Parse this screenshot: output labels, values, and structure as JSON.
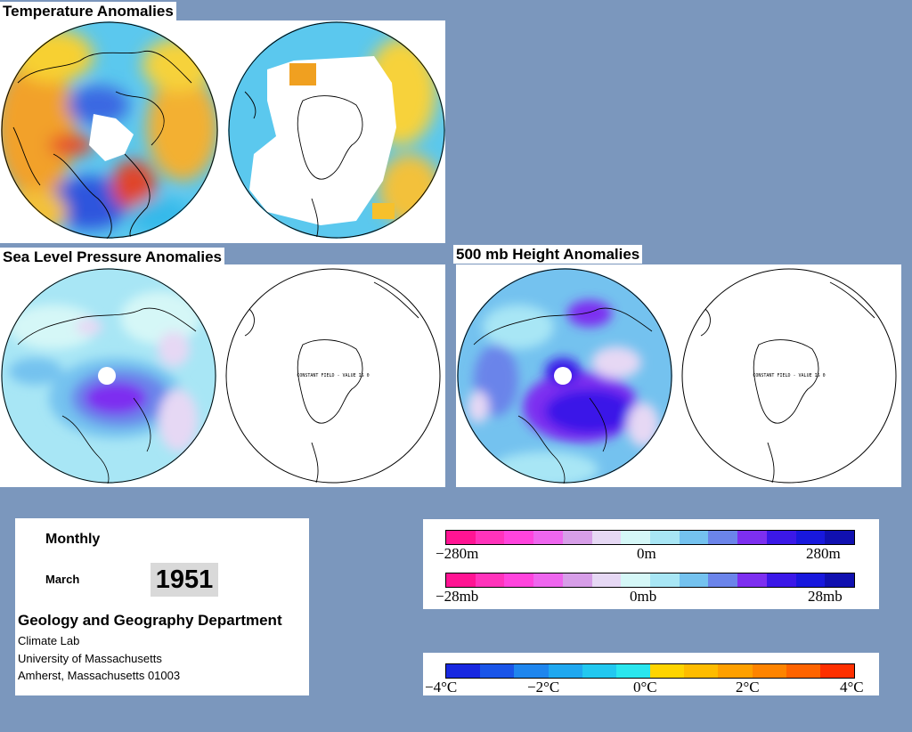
{
  "titles": {
    "temperature": "Temperature Anomalies",
    "slp": "Sea Level Pressure Anomalies",
    "height500": "500 mb Height Anomalies"
  },
  "map_text": {
    "constant_field": "CONSTANT FIELD - VALUE IS 0"
  },
  "info": {
    "period": "Monthly",
    "month": "March",
    "year": "1951",
    "department": "Geology and Geography Department",
    "lab": "Climate Lab",
    "university": "University of Massachusetts",
    "address": "Amherst, Massachusetts 01003"
  },
  "legend_height": {
    "left": "−280m",
    "mid": "0m",
    "right": "280m",
    "colors": [
      "#ff1493",
      "#ff33bb",
      "#ff44dd",
      "#ee66ee",
      "#d79ee8",
      "#e6d8f4",
      "#d5f7f7",
      "#a8e6f5",
      "#74c2ef",
      "#6b84ea",
      "#7d2ff0",
      "#3b18e8",
      "#1818dd",
      "#1010b0"
    ]
  },
  "legend_pressure": {
    "left": "−28mb",
    "mid": "0mb",
    "right": "28mb",
    "colors": [
      "#ff1493",
      "#ff33bb",
      "#ff44dd",
      "#ee66ee",
      "#d79ee8",
      "#e6d8f4",
      "#d5f7f7",
      "#a8e6f5",
      "#74c2ef",
      "#6b84ea",
      "#7d2ff0",
      "#3b18e8",
      "#1818dd",
      "#1010b0"
    ]
  },
  "legend_temperature": {
    "labels": [
      "−4°C",
      "−2°C",
      "0°C",
      "2°C",
      "4°C"
    ],
    "colors": [
      "#1828e0",
      "#1a55e8",
      "#1f86ee",
      "#20a8f0",
      "#22c8f0",
      "#2ae6ee",
      "#ffd400",
      "#ffbc00",
      "#ffa000",
      "#ff8400",
      "#ff6400",
      "#ff3000"
    ]
  }
}
